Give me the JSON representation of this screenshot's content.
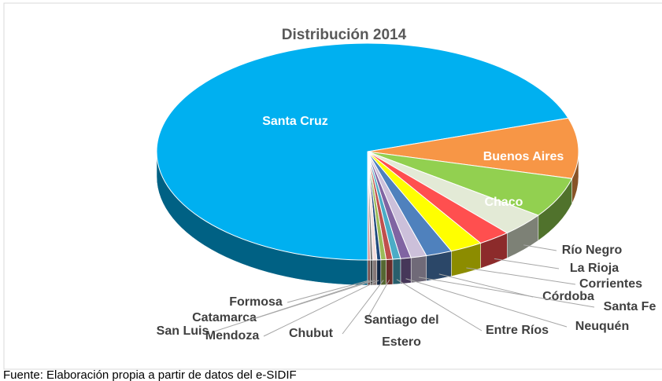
{
  "chart_data": {
    "type": "pie3d",
    "title": "Distribución 2014",
    "categories": [
      "Santa Cruz",
      "Buenos Aires",
      "Chaco",
      "Río Negro",
      "La Rioja",
      "Corrientes",
      "Córdoba",
      "Santa Fe",
      "Neuquén",
      "Entre Ríos",
      "Santiago del Estero",
      "Chubut",
      "Mendoza",
      "Catamarca",
      "San Luis",
      "Formosa"
    ],
    "values": [
      70,
      9,
      6,
      3.5,
      2.5,
      2.5,
      2,
      1.2,
      0.8,
      0.6,
      0.5,
      0.4,
      0.3,
      0.3,
      0.2,
      0.2
    ],
    "colors": [
      "#00b0f0",
      "#f79646",
      "#92d050",
      "#e3ead6",
      "#ff4f4f",
      "#ffff00",
      "#4f81bd",
      "#ccc0da",
      "#8064a2",
      "#4bacc6",
      "#c0504d",
      "#9bbb59",
      "#1f497d",
      "#f2dcdb",
      "#7f7f7f",
      "#d99694"
    ],
    "source": "Fuente: Elaboración propia a partir de datos del e-SIDIF"
  }
}
